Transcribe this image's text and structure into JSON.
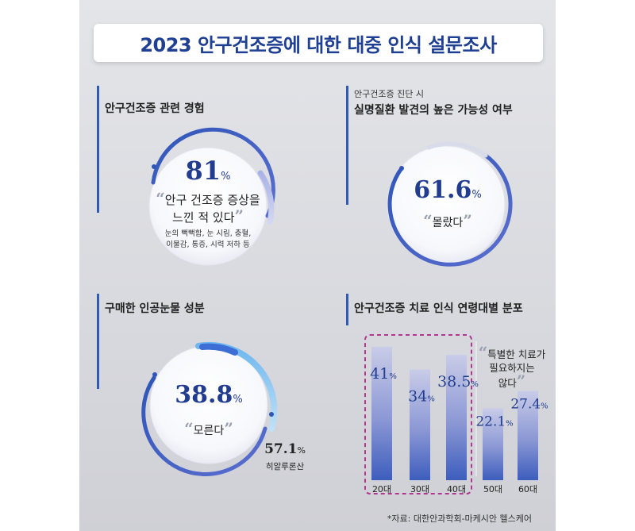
{
  "title": "2023 안구건조증에 대한 대중 인식 설문조사",
  "panel1": {
    "heading": "안구건조증 관련 경험",
    "value": "81",
    "unit": "%",
    "quote_line1": "안구 건조증 증상을",
    "quote_line2": "느낀 적 있다",
    "note_line1": "눈의 뻑뻑함, 눈 시림, 충혈,",
    "note_line2": "이물감, 통증, 시력 저하 등"
  },
  "panel2": {
    "subheading": "안구건조증 진단 시",
    "heading": "실명질환 발견의 높은 가능성 여부",
    "value": "61.6",
    "unit": "%",
    "quote": "몰랐다"
  },
  "panel3": {
    "heading": "구매한 인공눈물 성분",
    "value": "38.8",
    "unit": "%",
    "quote": "모른다",
    "outer_value": "57.1",
    "outer_unit": "%",
    "outer_label": "히알루론산"
  },
  "panel4": {
    "heading": "안구건조증 치료 인식 연령대별 분포",
    "annotation_line1": "특별한 치료가",
    "annotation_line2": "필요하지는",
    "annotation_line3": "않다"
  },
  "quote_open": "“",
  "quote_close": "”",
  "source": "*자료: 대한안과학회-마케시안 헬스케어",
  "chart_data": {
    "type": "bar",
    "title": "안구건조증 치료 인식 연령대별 분포",
    "categories": [
      "20대",
      "30대",
      "40대",
      "50대",
      "60대"
    ],
    "values": [
      41,
      34,
      38.5,
      22.1,
      27.4
    ],
    "value_labels": [
      "41",
      "34",
      "38.5",
      "22.1",
      "27.4"
    ],
    "unit": "%",
    "highlighted_categories": [
      "20대",
      "30대",
      "40대"
    ],
    "annotation": "특별한 치료가 필요하지는 않다",
    "colors": {
      "bar_top": "#c8cbe6",
      "bar_bottom": "#3f5fbf",
      "highlight_border": "#b0388f"
    }
  }
}
